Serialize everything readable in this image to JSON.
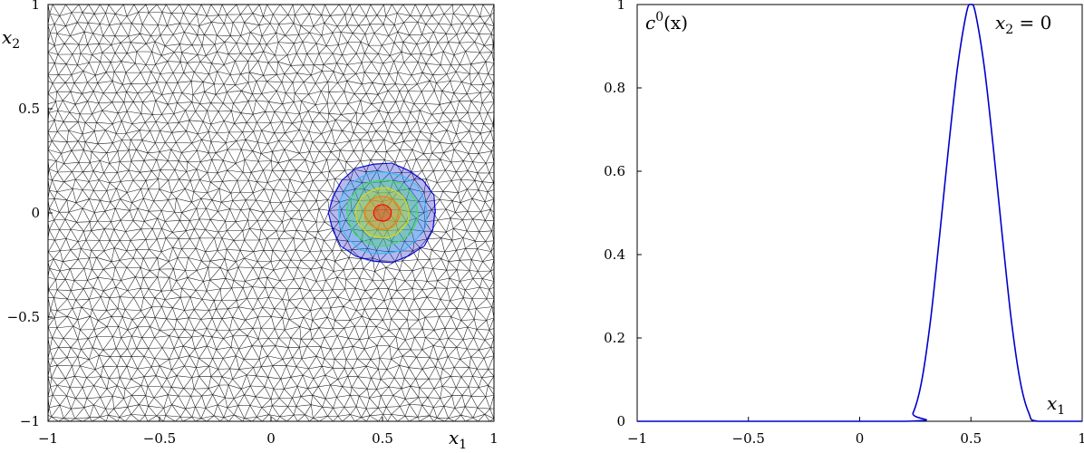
{
  "chart_data": [
    {
      "type": "heatmap",
      "panel": "mesh-contour",
      "xlabel": "x",
      "xlabel_sub": "1",
      "ylabel": "x",
      "ylabel_sub": "2",
      "xlim": [
        -1,
        1
      ],
      "ylim": [
        -1,
        1
      ],
      "xticks": [
        {
          "v": -1,
          "label": "−1"
        },
        {
          "v": -0.5,
          "label": "−0.5"
        },
        {
          "v": 0,
          "label": "0"
        },
        {
          "v": 0.5,
          "label": "0.5"
        },
        {
          "v": 1,
          "label": "1"
        }
      ],
      "yticks": [
        {
          "v": -1,
          "label": "−1"
        },
        {
          "v": -0.5,
          "label": "−0.5"
        },
        {
          "v": 0,
          "label": "0"
        },
        {
          "v": 0.5,
          "label": "0.5"
        },
        {
          "v": 1,
          "label": "1"
        }
      ],
      "mesh": "unstructured triangular",
      "contour_center": [
        0.5,
        0
      ],
      "contour_radii": [
        0.04,
        0.08,
        0.12,
        0.16,
        0.2,
        0.24
      ],
      "contour_colors": [
        "#ff0000",
        "#ff7a00",
        "#e8d800",
        "#44dd55",
        "#33bbee",
        "#0000cc"
      ]
    },
    {
      "type": "line",
      "panel": "profile",
      "title_main": "c",
      "title_sup": "0",
      "title_arg": "(x)",
      "annotation": "x",
      "annotation_sub": "2",
      "annotation_tail": " = 0",
      "xlabel": "x",
      "xlabel_sub": "1",
      "xlim": [
        -1,
        1
      ],
      "ylim": [
        0,
        1
      ],
      "xticks": [
        {
          "v": -1,
          "label": "−1"
        },
        {
          "v": -0.5,
          "label": "−0.5"
        },
        {
          "v": 0,
          "label": "0"
        },
        {
          "v": 0.5,
          "label": "0.5"
        },
        {
          "v": 1,
          "label": "1"
        }
      ],
      "yticks": [
        {
          "v": 0,
          "label": "0"
        },
        {
          "v": 0.2,
          "label": "0.2"
        },
        {
          "v": 0.4,
          "label": "0.4"
        },
        {
          "v": 0.6,
          "label": "0.6"
        },
        {
          "v": 0.8,
          "label": "0.8"
        },
        {
          "v": 1,
          "label": "1"
        }
      ],
      "color": "#0000cc",
      "series": [
        {
          "x": [
            -1,
            0.2,
            0.24,
            0.28,
            0.32,
            0.36,
            0.4,
            0.44,
            0.48,
            0.5,
            0.52,
            0.56,
            0.6,
            0.64,
            0.68,
            0.72,
            0.76,
            0.8,
            1
          ],
          "y": [
            0,
            0,
            0.02,
            0.1,
            0.25,
            0.45,
            0.66,
            0.85,
            0.98,
            1.0,
            0.98,
            0.85,
            0.66,
            0.45,
            0.25,
            0.1,
            0.02,
            0,
            0
          ]
        }
      ]
    }
  ]
}
